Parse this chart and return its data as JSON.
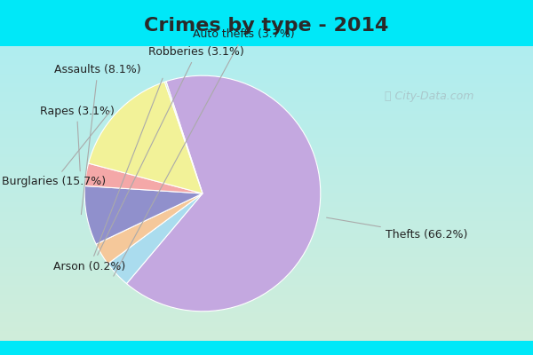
{
  "title": "Crimes by type - 2014",
  "title_fontsize": 16,
  "title_fontweight": "bold",
  "pie_order": [
    "Thefts",
    "Auto thefts",
    "Robberies",
    "Assaults",
    "Rapes",
    "Burglaries",
    "Arson"
  ],
  "pie_values": [
    66.2,
    3.7,
    3.1,
    8.1,
    3.1,
    15.7,
    0.2
  ],
  "pie_colors": [
    "#c4a8e0",
    "#aadcee",
    "#f5c89a",
    "#9090cc",
    "#f4a8a8",
    "#f2f298",
    "#c8e8c8"
  ],
  "label_texts": [
    "Thefts (66.2%)",
    "Auto thefts (3.7%)",
    "Robberies (3.1%)",
    "Assaults (8.1%)",
    "Rapes (3.1%)",
    "Burglaries (15.7%)",
    "Arson (0.2%)"
  ],
  "bg_cyan": "#00e8f8",
  "bg_top_color": "#b0eef0",
  "bg_bottom_color": "#d0edda",
  "label_fontsize": 9,
  "title_color": "#2a2a2a",
  "label_color": "#222222",
  "line_color": "#aaaaaa",
  "watermark_color": "#aac8cc",
  "startangle": 108,
  "figsize": [
    6.0,
    4.0
  ],
  "dpi": 100
}
